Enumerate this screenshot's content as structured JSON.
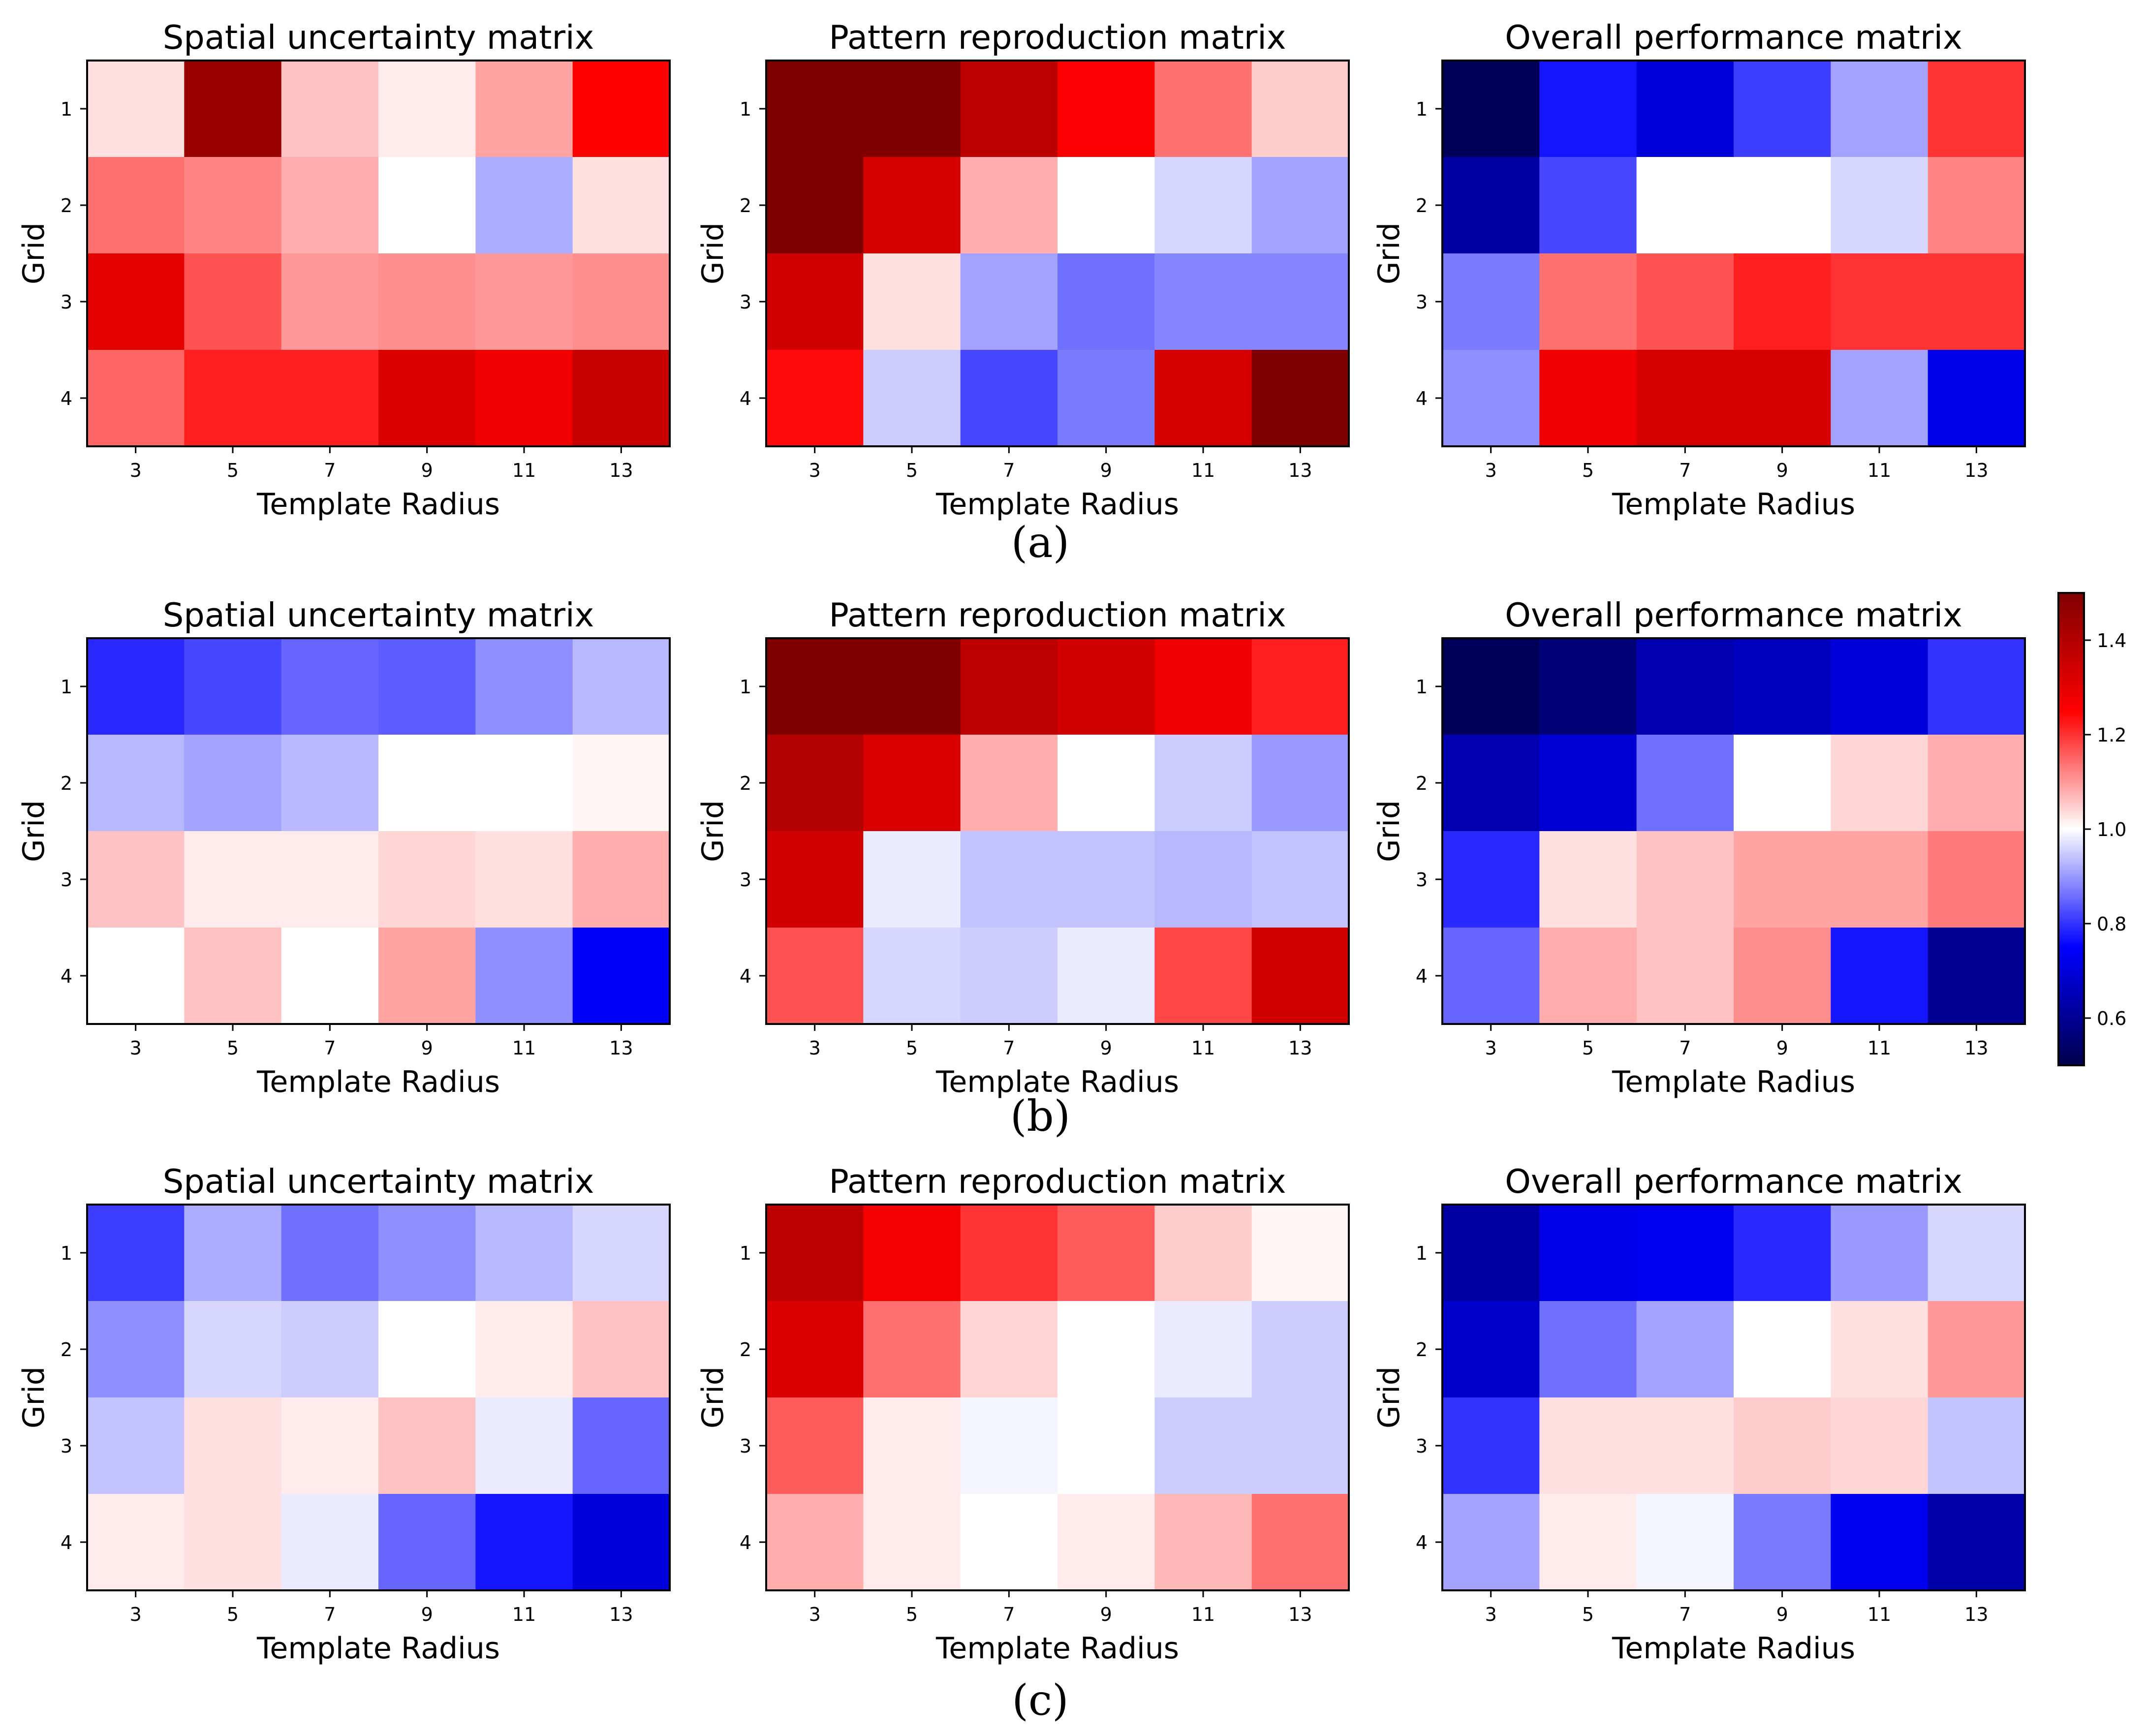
{
  "chart_data": {
    "type": "heatmap",
    "colormap": "seismic",
    "colorbar": {
      "range": [
        0.5,
        1.5
      ],
      "ticks": [
        0.6,
        0.8,
        1.0,
        1.2,
        1.4
      ],
      "tick_labels": [
        "0.6",
        "0.8",
        "1.0",
        "1.2",
        "1.4"
      ],
      "placement": "right"
    },
    "rows": [
      {
        "caption": "(a)",
        "panels": [
          {
            "title": "Spatial uncertainty matrix",
            "xlabel": "Template Radius",
            "ylabel": "Grid",
            "x_ticks": [
              "3",
              "5",
              "7",
              "9",
              "11",
              "13"
            ],
            "y_ticks": [
              "1",
              "2",
              "3",
              "4"
            ],
            "values": [
              [
                1.03,
                1.45,
                1.06,
                1.02,
                1.09,
                1.25
              ],
              [
                1.14,
                1.12,
                1.08,
                1.0,
                0.92,
                1.03
              ],
              [
                1.3,
                1.17,
                1.1,
                1.11,
                1.1,
                1.11
              ],
              [
                1.15,
                1.22,
                1.22,
                1.32,
                1.28,
                1.36
              ]
            ]
          },
          {
            "title": "Pattern reproduction matrix",
            "xlabel": "Template Radius",
            "ylabel": "Grid",
            "x_ticks": [
              "3",
              "5",
              "7",
              "9",
              "11",
              "13"
            ],
            "y_ticks": [
              "1",
              "2",
              "3",
              "4"
            ],
            "values": [
              [
                1.5,
                1.5,
                1.38,
                1.26,
                1.14,
                1.05
              ],
              [
                1.5,
                1.33,
                1.08,
                1.0,
                0.96,
                0.91
              ],
              [
                1.34,
                1.03,
                0.91,
                0.86,
                0.88,
                0.88
              ],
              [
                1.24,
                0.95,
                0.82,
                0.87,
                1.33,
                1.5
              ]
            ]
          },
          {
            "title": "Overall performance matrix",
            "xlabel": "Template Radius",
            "ylabel": "Grid",
            "x_ticks": [
              "3",
              "5",
              "7",
              "9",
              "11",
              "13"
            ],
            "y_ticks": [
              "1",
              "2",
              "3",
              "4"
            ],
            "values": [
              [
                0.52,
                0.77,
                0.7,
                0.81,
                0.91,
                1.2
              ],
              [
                0.62,
                0.82,
                1.0,
                1.0,
                0.96,
                1.12
              ],
              [
                0.87,
                1.14,
                1.17,
                1.22,
                1.2,
                1.2
              ],
              [
                0.89,
                1.28,
                1.33,
                1.33,
                0.91,
                0.72
              ]
            ]
          }
        ]
      },
      {
        "caption": "(b)",
        "panels": [
          {
            "title": "Spatial uncertainty matrix",
            "xlabel": "Template Radius",
            "ylabel": "Grid",
            "x_ticks": [
              "3",
              "5",
              "7",
              "9",
              "11",
              "13"
            ],
            "y_ticks": [
              "1",
              "2",
              "3",
              "4"
            ],
            "values": [
              [
                0.79,
                0.82,
                0.85,
                0.84,
                0.89,
                0.93
              ],
              [
                0.93,
                0.91,
                0.93,
                1.0,
                1.0,
                1.01
              ],
              [
                1.06,
                1.02,
                1.02,
                1.04,
                1.03,
                1.08
              ],
              [
                1.0,
                1.06,
                1.0,
                1.09,
                0.89,
                0.74
              ]
            ]
          },
          {
            "title": "Pattern reproduction matrix",
            "xlabel": "Template Radius",
            "ylabel": "Grid",
            "x_ticks": [
              "3",
              "5",
              "7",
              "9",
              "11",
              "13"
            ],
            "y_ticks": [
              "1",
              "2",
              "3",
              "4"
            ],
            "values": [
              [
                1.5,
                1.5,
                1.38,
                1.34,
                1.28,
                1.22
              ],
              [
                1.4,
                1.32,
                1.08,
                1.0,
                0.95,
                0.9
              ],
              [
                1.34,
                0.98,
                0.94,
                0.94,
                0.93,
                0.94
              ],
              [
                1.17,
                0.96,
                0.95,
                0.98,
                1.18,
                1.34
              ]
            ]
          },
          {
            "title": "Overall performance matrix",
            "xlabel": "Template Radius",
            "ylabel": "Grid",
            "x_ticks": [
              "3",
              "5",
              "7",
              "9",
              "11",
              "13"
            ],
            "y_ticks": [
              "1",
              "2",
              "3",
              "4"
            ],
            "values": [
              [
                0.52,
                0.56,
                0.64,
                0.66,
                0.7,
                0.8
              ],
              [
                0.64,
                0.69,
                0.86,
                1.0,
                1.04,
                1.08
              ],
              [
                0.79,
                1.03,
                1.06,
                1.09,
                1.09,
                1.13
              ],
              [
                0.85,
                1.08,
                1.06,
                1.11,
                0.77,
                0.6
              ]
            ]
          }
        ]
      },
      {
        "caption": "(c)",
        "panels": [
          {
            "title": "Spatial uncertainty matrix",
            "xlabel": "Template Radius",
            "ylabel": "Grid",
            "x_ticks": [
              "3",
              "5",
              "7",
              "9",
              "11",
              "13"
            ],
            "y_ticks": [
              "1",
              "2",
              "3",
              "4"
            ],
            "values": [
              [
                0.81,
                0.92,
                0.86,
                0.89,
                0.93,
                0.96
              ],
              [
                0.89,
                0.96,
                0.95,
                1.0,
                1.02,
                1.06
              ],
              [
                0.94,
                1.03,
                1.02,
                1.06,
                0.98,
                0.85
              ],
              [
                1.02,
                1.03,
                0.98,
                0.85,
                0.77,
                0.7
              ]
            ]
          },
          {
            "title": "Pattern reproduction matrix",
            "xlabel": "Template Radius",
            "ylabel": "Grid",
            "x_ticks": [
              "3",
              "5",
              "7",
              "9",
              "11",
              "13"
            ],
            "y_ticks": [
              "1",
              "2",
              "3",
              "4"
            ],
            "values": [
              [
                1.38,
                1.27,
                1.2,
                1.16,
                1.05,
                1.01
              ],
              [
                1.32,
                1.14,
                1.04,
                1.0,
                0.98,
                0.95
              ],
              [
                1.16,
                1.02,
                0.99,
                1.0,
                0.95,
                0.95
              ],
              [
                1.08,
                1.02,
                1.0,
                1.02,
                1.07,
                1.14
              ]
            ]
          },
          {
            "title": "Overall performance matrix",
            "xlabel": "Template Radius",
            "ylabel": "Grid",
            "x_ticks": [
              "3",
              "5",
              "7",
              "9",
              "11",
              "13"
            ],
            "y_ticks": [
              "1",
              "2",
              "3",
              "4"
            ],
            "values": [
              [
                0.62,
                0.72,
                0.73,
                0.79,
                0.9,
                0.96
              ],
              [
                0.68,
                0.86,
                0.91,
                1.0,
                1.03,
                1.1
              ],
              [
                0.8,
                1.03,
                1.03,
                1.05,
                1.04,
                0.94
              ],
              [
                0.91,
                1.02,
                0.99,
                0.87,
                0.73,
                0.63
              ]
            ]
          }
        ]
      }
    ]
  }
}
